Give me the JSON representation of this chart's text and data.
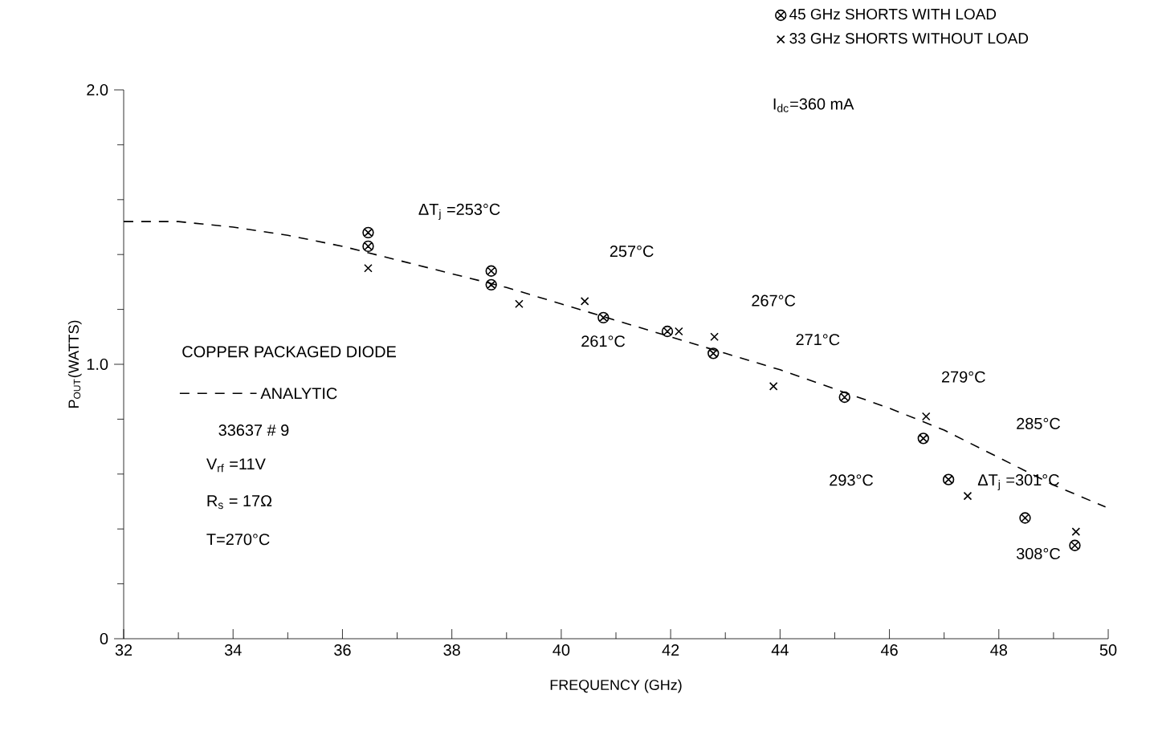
{
  "chart_data": {
    "type": "scatter",
    "xlabel": "FREQUENCY (GHz)",
    "ylabel": "P$_{OUT}$(WATTS)",
    "xlim": [
      32,
      50
    ],
    "ylim": [
      0,
      2.0
    ],
    "xticks": [
      32,
      34,
      36,
      38,
      40,
      42,
      44,
      46,
      48,
      50
    ],
    "yticks": [
      0,
      {
        "value": 1.0,
        "label": "1.0"
      },
      {
        "value": 2.0,
        "label": "2.0"
      }
    ],
    "grid": false,
    "legend": "top right",
    "series": [
      {
        "name": "45 GHz SHORTS WITH LOAD",
        "color": "#000000",
        "x": [
          36.47,
          36.47,
          38.72,
          38.72,
          40.77,
          41.94,
          42.78,
          45.18,
          46.62,
          47.08,
          48.48,
          49.39
        ],
        "values": [
          1.48,
          1.43,
          1.34,
          1.29,
          1.17,
          1.12,
          1.04,
          0.88,
          0.73,
          0.58,
          0.44,
          0.34
        ]
      },
      {
        "name": "33 GHz SHORTS WITHOUT LOAD",
        "marker": "cross",
        "color": "#000000",
        "x": [
          36.47,
          39.23,
          40.43,
          42.15,
          42.8,
          43.88,
          46.67,
          47.43,
          49.41
        ],
        "values": [
          1.35,
          1.22,
          1.23,
          1.12,
          1.1,
          0.92,
          0.81,
          0.52,
          0.39
        ]
      },
      {
        "name": "ANALYTIC",
        "type": "line",
        "line_style": "dashed",
        "marker": "none",
        "color": "#000000",
        "x": [
          32,
          33,
          34,
          35,
          36,
          37,
          38,
          39,
          40,
          41,
          42,
          43,
          44,
          45,
          46,
          47,
          48,
          49,
          49.95
        ],
        "values": [
          1.52,
          1.52,
          1.5,
          1.47,
          1.43,
          1.38,
          1.33,
          1.28,
          1.22,
          1.16,
          1.1,
          1.04,
          0.98,
          0.91,
          0.84,
          0.76,
          0.66,
          0.56,
          0.48
        ]
      }
    ],
    "annotations": [
      "I$_{dc}$=360 mA",
      "COPPER PACKAGED DIODE",
      "33637  # 9",
      "V$_{rf}$ =11V",
      "R$_{s}$ = 17Ω",
      "T=270°C",
      "ΔT$_{j}$ =253°C",
      "257°C",
      "261°C",
      "267°C",
      "271°C",
      "279°C",
      "285°C",
      "293°C",
      "ΔT$_{j}$ =301°C",
      "308°C"
    ]
  }
}
